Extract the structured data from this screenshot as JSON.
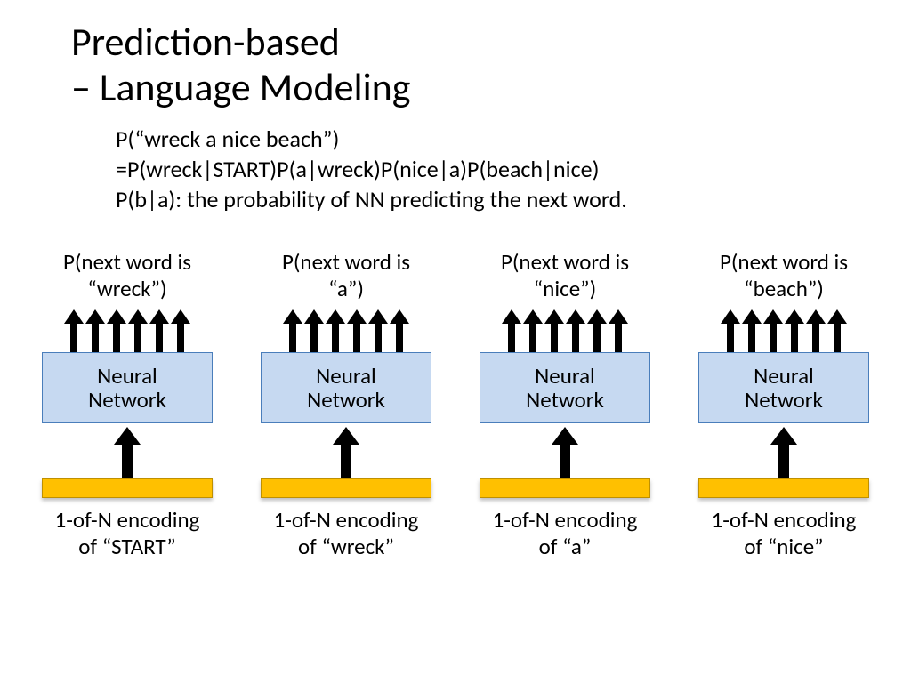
{
  "title_line1": "Prediction-based",
  "title_line2": "– Language Modeling",
  "sub1": "P(“wreck a nice beach”)",
  "sub2": "=P(wreck|START)P(a|wreck)P(nice|a)P(beach|nice)",
  "sub3": "P(b|a): the probability of NN predicting the next word.",
  "arrow_count": 6,
  "colors": {
    "nn_fill": "#c6d9f1",
    "nn_border": "#4a7ebb",
    "bar_fill": "#ffc000",
    "bar_border": "#bf9000",
    "arrow": "#000000",
    "text": "#000000",
    "background": "#ffffff"
  },
  "fonts": {
    "title_size": 44,
    "body_size": 26,
    "col_label_size": 25,
    "nn_size": 25
  },
  "nn_label_line1": "Neural",
  "nn_label_line2": "Network",
  "columns": [
    {
      "top_line1": "P(next word is",
      "top_line2": "“wreck”)",
      "bottom_line1": "1-of-N encoding",
      "bottom_line2": "of “START”"
    },
    {
      "top_line1": "P(next word is",
      "top_line2": "“a”)",
      "bottom_line1": "1-of-N encoding",
      "bottom_line2": "of “wreck”"
    },
    {
      "top_line1": "P(next word is",
      "top_line2": "“nice”)",
      "bottom_line1": "1-of-N encoding",
      "bottom_line2": "of “a”"
    },
    {
      "top_line1": "P(next word is",
      "top_line2": "“beach”)",
      "bottom_line1": "1-of-N encoding",
      "bottom_line2": "of “nice”"
    }
  ]
}
